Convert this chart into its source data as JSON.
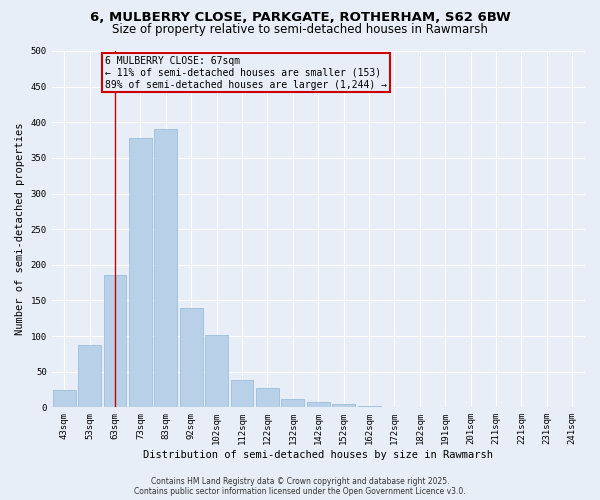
{
  "title": "6, MULBERRY CLOSE, PARKGATE, ROTHERHAM, S62 6BW",
  "subtitle": "Size of property relative to semi-detached houses in Rawmarsh",
  "bar_labels": [
    "43sqm",
    "53sqm",
    "63sqm",
    "73sqm",
    "83sqm",
    "92sqm",
    "102sqm",
    "112sqm",
    "122sqm",
    "132sqm",
    "142sqm",
    "152sqm",
    "162sqm",
    "172sqm",
    "182sqm",
    "191sqm",
    "201sqm",
    "211sqm",
    "221sqm",
    "231sqm",
    "241sqm"
  ],
  "bar_values": [
    25,
    88,
    185,
    378,
    390,
    140,
    102,
    38,
    27,
    12,
    8,
    5,
    2,
    1,
    0,
    0,
    0,
    0,
    0,
    0,
    1
  ],
  "bar_color": "#b8d0e8",
  "bar_edge_color": "#90b8d8",
  "xlabel": "Distribution of semi-detached houses by size in Rawmarsh",
  "ylabel": "Number of semi-detached properties",
  "ylim": [
    0,
    500
  ],
  "yticks": [
    0,
    50,
    100,
    150,
    200,
    250,
    300,
    350,
    400,
    450,
    500
  ],
  "property_line_x": 2,
  "property_line_color": "#cc0000",
  "annotation_title": "6 MULBERRY CLOSE: 67sqm",
  "annotation_line1": "← 11% of semi-detached houses are smaller (153)",
  "annotation_line2": "89% of semi-detached houses are larger (1,244) →",
  "annotation_box_color": "#cc0000",
  "footer_line1": "Contains HM Land Registry data © Crown copyright and database right 2025.",
  "footer_line2": "Contains public sector information licensed under the Open Government Licence v3.0.",
  "background_color": "#e8eef8",
  "grid_color": "#ffffff",
  "title_fontsize": 9.5,
  "subtitle_fontsize": 8.5,
  "axis_label_fontsize": 7.5,
  "tick_fontsize": 6.5,
  "annotation_fontsize": 7,
  "footer_fontsize": 5.5
}
